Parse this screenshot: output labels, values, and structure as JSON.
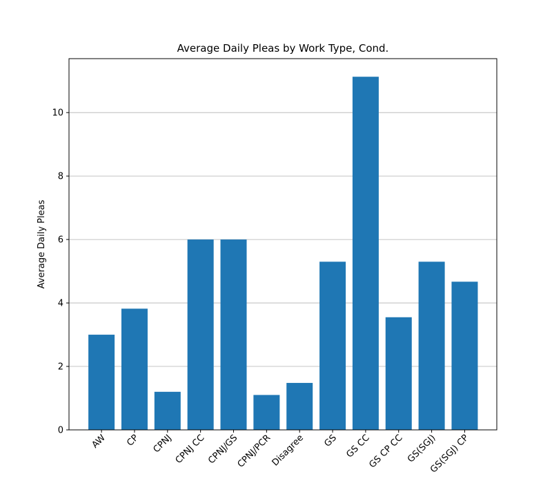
{
  "chart_data": {
    "type": "bar",
    "title": "Average Daily Pleas by Work Type, Cond.",
    "xlabel": "",
    "ylabel": "Average Daily Pleas",
    "categories": [
      "AW",
      "CP",
      "CPNJ",
      "CPNJ CC",
      "CPNJ/GS",
      "CPNJ/PCR",
      "Disagree",
      "GS",
      "GS CC",
      "GS CP CC",
      "GS(SGJ)",
      "GS(SGJ) CP"
    ],
    "values": [
      3.0,
      3.82,
      1.2,
      6.0,
      6.0,
      1.1,
      1.48,
      5.3,
      11.13,
      3.55,
      5.3,
      4.67
    ],
    "ylim": [
      0,
      11.7
    ],
    "yticks": [
      0,
      2,
      4,
      6,
      8,
      10
    ],
    "grid": "y",
    "bar_color": "#1f77b4",
    "grid_color": "#b0b0b0",
    "legend": "none"
  }
}
